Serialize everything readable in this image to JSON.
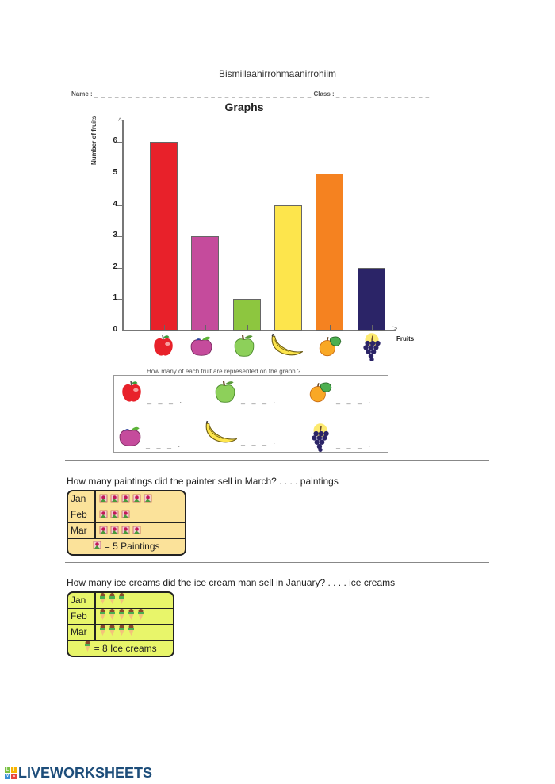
{
  "header": {
    "bismillah": "Bismillaahirrohmaanirrohiim",
    "name_label": "Name :",
    "name_blank": "_ _ _ _ _ _ _ _ _ _ _ _ _ _ _ _ _ _ _ _ _ _ _ _ _ _ _ _ _ _ _ _",
    "class_label": "Class :",
    "class_blank": "_ _ _ _ _ _ _ _ _ _ _ _ _ _"
  },
  "chart_data": {
    "type": "bar",
    "title": "Graphs",
    "xlabel": "Fruits",
    "ylabel": "Number of fruits",
    "categories": [
      "red apple",
      "plum",
      "green apple",
      "banana",
      "orange",
      "grapes"
    ],
    "values": [
      6,
      3,
      1,
      4,
      5,
      2
    ],
    "colors": [
      "#e8212a",
      "#c54b9c",
      "#8dc63f",
      "#fde54c",
      "#f58220",
      "#2b2467"
    ],
    "yticks": [
      0,
      1,
      2,
      3,
      4,
      5,
      6
    ],
    "ylim": [
      0,
      6.5
    ],
    "grid": false,
    "legend": "none"
  },
  "fruit_question": {
    "prompt": "How many of each fruit are represented on the graph ?",
    "blank": "_ _ _ ."
  },
  "paintings": {
    "question": "How many paintings did the painter sell in March?  . . . .  paintings",
    "rows": [
      {
        "month": "Jan",
        "count": 5
      },
      {
        "month": "Feb",
        "count": 3
      },
      {
        "month": "Mar",
        "count": 4
      }
    ],
    "key": "= 5 Paintings",
    "bg": "#fbe29a"
  },
  "icecreams": {
    "question": "How many ice creams did the ice cream man sell in January?  . . . .  ice creams",
    "rows": [
      {
        "month": "Jan",
        "count": 3
      },
      {
        "month": "Feb",
        "count": 5
      },
      {
        "month": "Mar",
        "count": 4
      }
    ],
    "key": "= 8 Ice creams",
    "bg": "#e8f56a"
  },
  "footer": {
    "logo_letters": [
      "L",
      "I",
      "V",
      "E"
    ],
    "brand": "LIVEWORKSHEETS"
  }
}
